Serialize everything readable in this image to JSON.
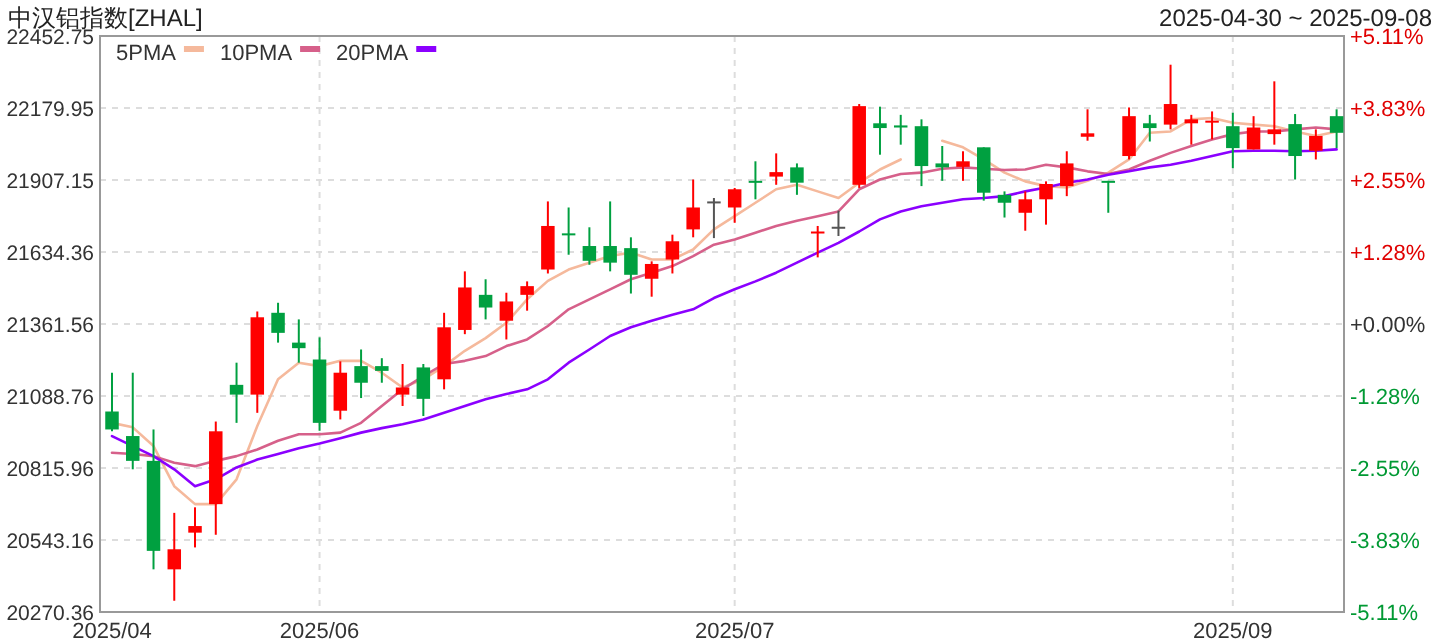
{
  "chart_data": {
    "type": "candlestick",
    "title": "中汉铝指数[ZHAL]",
    "subtitle": "2025-04-30 ~ 2025-09-08",
    "categories": [
      "2025/04",
      null,
      null,
      null,
      null,
      null,
      null,
      null,
      null,
      null,
      "2025/06",
      null,
      null,
      null,
      null,
      null,
      null,
      null,
      null,
      null,
      null,
      null,
      null,
      null,
      null,
      null,
      null,
      null,
      null,
      null,
      "2025/07",
      null,
      null,
      null,
      null,
      null,
      null,
      null,
      null,
      null,
      null,
      null,
      null,
      null,
      null,
      null,
      null,
      null,
      null,
      null,
      null,
      null,
      null,
      null,
      "2025/09",
      null,
      null,
      null,
      null,
      null
    ],
    "ohlc": [
      [
        21030,
        21177,
        20955,
        20962
      ],
      [
        20937,
        21177,
        20811,
        20843
      ],
      [
        20843,
        20962,
        20432,
        20502
      ],
      [
        20432,
        20646,
        20313,
        20508
      ],
      [
        20571,
        20667,
        20515,
        20596
      ],
      [
        20679,
        20992,
        20563,
        20955
      ],
      [
        21131,
        21215,
        20987,
        21094
      ],
      [
        21094,
        21409,
        21025,
        21387
      ],
      [
        21404,
        21442,
        21291,
        21328
      ],
      [
        21291,
        21379,
        21215,
        21270
      ],
      [
        21227,
        21311,
        20957,
        20987
      ],
      [
        21033,
        21220,
        21000,
        21177
      ],
      [
        21202,
        21265,
        21081,
        21139
      ],
      [
        21202,
        21232,
        21139,
        21184
      ],
      [
        21094,
        21210,
        21051,
        21121
      ],
      [
        21197,
        21210,
        21013,
        21078
      ],
      [
        21152,
        21404,
        21114,
        21349
      ],
      [
        21339,
        21561,
        21323,
        21500
      ],
      [
        21472,
        21531,
        21379,
        21424
      ],
      [
        21374,
        21480,
        21303,
        21447
      ],
      [
        21472,
        21523,
        21412,
        21505
      ],
      [
        21568,
        21826,
        21553,
        21733
      ],
      [
        21705,
        21803,
        21624,
        21700
      ],
      [
        21657,
        21728,
        21586,
        21601
      ],
      [
        21657,
        21826,
        21561,
        21594
      ],
      [
        21649,
        21690,
        21477,
        21548
      ],
      [
        21533,
        21599,
        21465,
        21589
      ],
      [
        21606,
        21700,
        21553,
        21675
      ],
      [
        21720,
        21909,
        21690,
        21803
      ],
      [
        21826,
        21839,
        21687,
        21826
      ],
      [
        21803,
        21877,
        21745,
        21872
      ],
      [
        21904,
        21978,
        21834,
        21899
      ],
      [
        21920,
        22008,
        21889,
        21937
      ],
      [
        21955,
        21970,
        21851,
        21897
      ],
      [
        21705,
        21733,
        21614,
        21712
      ],
      [
        21730,
        21791,
        21695,
        21730
      ],
      [
        21889,
        22195,
        21877,
        22187
      ],
      [
        22122,
        22185,
        22003,
        22104
      ],
      [
        22114,
        22154,
        22041,
        22106
      ],
      [
        22111,
        22137,
        21884,
        21960
      ],
      [
        21970,
        22036,
        21904,
        21955
      ],
      [
        21957,
        22016,
        21904,
        21978
      ],
      [
        22031,
        22031,
        21829,
        21859
      ],
      [
        21851,
        21864,
        21765,
        21821
      ],
      [
        21783,
        21864,
        21715,
        21834
      ],
      [
        21834,
        21902,
        21738,
        21892
      ],
      [
        21884,
        22016,
        21846,
        21970
      ],
      [
        22071,
        22175,
        22056,
        22084
      ],
      [
        21904,
        21904,
        21783,
        21899
      ],
      [
        21998,
        22182,
        21985,
        22149
      ],
      [
        22122,
        22154,
        22053,
        22104
      ],
      [
        22117,
        22344,
        22099,
        22195
      ],
      [
        22122,
        22154,
        22041,
        22137
      ],
      [
        22127,
        22167,
        22061,
        22132
      ],
      [
        22111,
        22162,
        21952,
        22028
      ],
      [
        22023,
        22149,
        22023,
        22106
      ],
      [
        22081,
        22281,
        22041,
        22099
      ],
      [
        22119,
        22157,
        21909,
        21998
      ],
      [
        22018,
        22099,
        21985,
        22074
      ],
      [
        22149,
        22175,
        22028,
        22086
      ]
    ],
    "series": [
      {
        "name": "5PMA",
        "type": "line",
        "color": "#f5b99c",
        "values": [
          20987,
          20970,
          20899,
          20747,
          20679,
          20679,
          20773,
          20975,
          21152,
          21215,
          21202,
          21222,
          21222,
          21177,
          21121,
          21152,
          21202,
          21260,
          21308,
          21366,
          21455,
          21525,
          21568,
          21594,
          21619,
          21632,
          21606,
          21606,
          21644,
          21720,
          21770,
          21821,
          21872,
          21889,
          21864,
          21839,
          21897,
          21947,
          21985,
          null,
          22056,
          22031,
          21985,
          21935,
          21902,
          21884,
          21879,
          21904,
          21935,
          21985,
          22086,
          22091,
          22137,
          22142,
          22124,
          22117,
          22111,
          22091,
          22074,
          22091
        ]
      },
      {
        "name": "10PMA",
        "type": "line",
        "color": "#d6608a",
        "values": [
          20874,
          20869,
          20861,
          20836,
          20823,
          20843,
          20861,
          20886,
          20919,
          20944,
          20944,
          20950,
          20987,
          21051,
          21114,
          21164,
          21210,
          21222,
          21240,
          21278,
          21303,
          21354,
          21417,
          21455,
          21493,
          21531,
          21556,
          21581,
          21619,
          21662,
          21682,
          21707,
          21733,
          21753,
          21770,
          21788,
          21872,
          21909,
          21930,
          21935,
          21950,
          21955,
          21950,
          21945,
          21947,
          21965,
          21955,
          21940,
          21930,
          21947,
          21980,
          22010,
          22036,
          22061,
          22081,
          22091,
          22091,
          22099,
          22106,
          22099
        ]
      },
      {
        "name": "20PMA",
        "type": "line",
        "color": "#8b00ff",
        "values": [
          20937,
          20899,
          20861,
          20811,
          20747,
          20773,
          20818,
          20848,
          20869,
          20891,
          20909,
          20929,
          20950,
          20967,
          20982,
          21000,
          21025,
          21051,
          21076,
          21096,
          21114,
          21152,
          21215,
          21265,
          21316,
          21349,
          21374,
          21397,
          21417,
          21460,
          21493,
          21523,
          21556,
          21594,
          21632,
          21669,
          21712,
          21758,
          21788,
          21808,
          21821,
          21834,
          21839,
          21846,
          21864,
          21879,
          21897,
          21909,
          21927,
          21940,
          21955,
          21965,
          21980,
          21998,
          22016,
          22018,
          22018,
          22016,
          22018,
          22023
        ]
      }
    ],
    "ylim": [
      20270.36,
      22452.75
    ],
    "yticks": [
      20270.36,
      20543.16,
      20815.96,
      21088.76,
      21361.56,
      21634.36,
      21907.15,
      22179.95,
      22452.75
    ],
    "y2lim": [
      -5.11,
      5.11
    ],
    "y2ticks": [
      {
        "value": -5.11,
        "label": "-5.11%"
      },
      {
        "value": -3.83,
        "label": "-3.83%"
      },
      {
        "value": -2.55,
        "label": "-2.55%"
      },
      {
        "value": -1.28,
        "label": "-1.28%"
      },
      {
        "value": 0,
        "label": "+0.00%"
      },
      {
        "value": 1.28,
        "label": "+1.28%"
      },
      {
        "value": 2.55,
        "label": "+2.55%"
      },
      {
        "value": 3.83,
        "label": "+3.83%"
      },
      {
        "value": 5.11,
        "label": "+5.11%"
      }
    ],
    "grid": true,
    "legend": "top left"
  }
}
